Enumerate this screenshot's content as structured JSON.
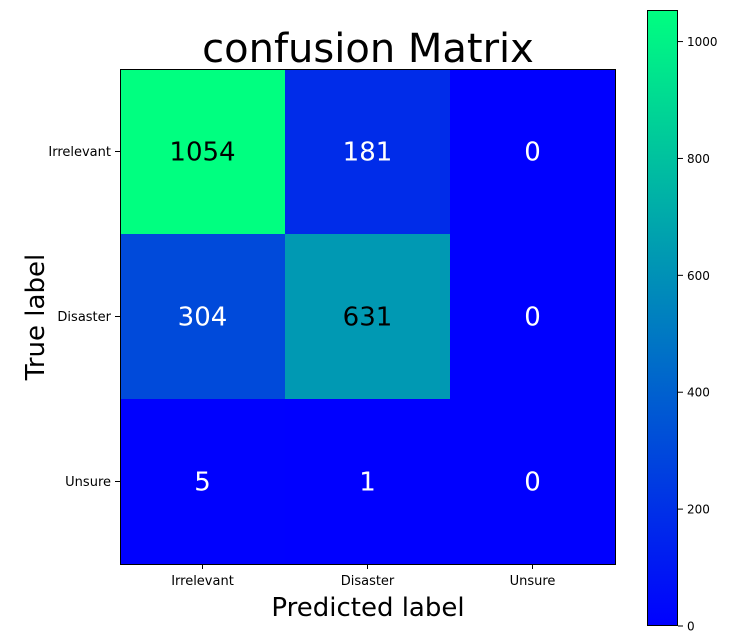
{
  "chart_data": {
    "type": "heatmap",
    "title": "confusion Matrix",
    "xlabel": "Predicted label",
    "ylabel": "True label",
    "x_categories": [
      "Irrelevant",
      "Disaster",
      "Unsure"
    ],
    "y_categories": [
      "Irrelevant",
      "Disaster",
      "Unsure"
    ],
    "values": [
      [
        1054,
        181,
        0
      ],
      [
        304,
        631,
        0
      ],
      [
        5,
        1,
        0
      ]
    ],
    "colormap": "winter",
    "colormap_low": "#0000ff",
    "colormap_high": "#00ff80",
    "colorbar": {
      "range": [
        0,
        1054
      ],
      "ticks": [
        0,
        200,
        400,
        600,
        800,
        1000
      ]
    },
    "text_color_light": "#ffffff",
    "text_color_dark": "#000000"
  }
}
